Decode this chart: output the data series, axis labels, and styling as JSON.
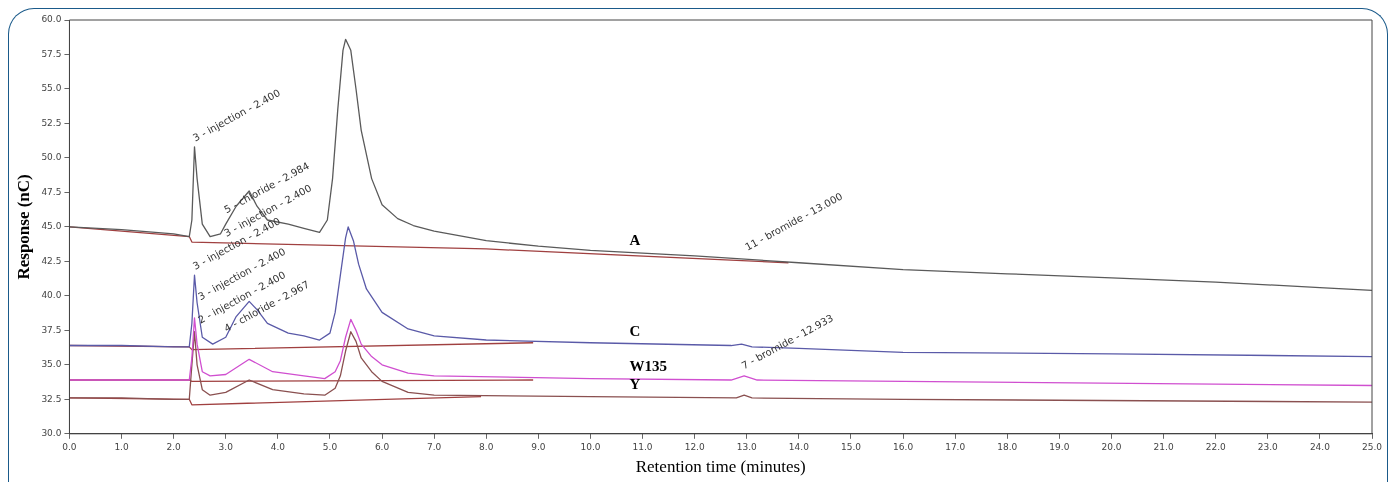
{
  "chart_data": {
    "type": "line",
    "xlabel": "Retention time (minutes)",
    "ylabel": "Response (nC)",
    "xlim": [
      0,
      25
    ],
    "ylim": [
      30,
      60
    ],
    "xticks": [
      {
        "value": 0,
        "label": "0.0"
      },
      {
        "value": 1,
        "label": "1.0"
      },
      {
        "value": 2,
        "label": "2.0"
      },
      {
        "value": 3,
        "label": "3.0"
      },
      {
        "value": 4,
        "label": "4.0"
      },
      {
        "value": 5,
        "label": "5.0"
      },
      {
        "value": 6,
        "label": "6.0"
      },
      {
        "value": 7,
        "label": "7.0"
      },
      {
        "value": 8,
        "label": "8.0"
      },
      {
        "value": 9,
        "label": "9.0"
      },
      {
        "value": 10,
        "label": "10.0"
      },
      {
        "value": 11,
        "label": "11.0"
      },
      {
        "value": 12,
        "label": "12.0"
      },
      {
        "value": 13,
        "label": "13.0"
      },
      {
        "value": 14,
        "label": "14.0"
      },
      {
        "value": 15,
        "label": "15.0"
      },
      {
        "value": 16,
        "label": "16.0"
      },
      {
        "value": 17,
        "label": "17.0"
      },
      {
        "value": 18,
        "label": "18.0"
      },
      {
        "value": 19,
        "label": "19.0"
      },
      {
        "value": 20,
        "label": "20.0"
      },
      {
        "value": 21,
        "label": "21.0"
      },
      {
        "value": 22,
        "label": "22.0"
      },
      {
        "value": 23,
        "label": "23.0"
      },
      {
        "value": 24,
        "label": "24.0"
      },
      {
        "value": 25,
        "label": "25.0"
      }
    ],
    "yticks": [
      {
        "value": 30,
        "label": "30.0"
      },
      {
        "value": 32.5,
        "label": "32.5"
      },
      {
        "value": 35,
        "label": "35.0"
      },
      {
        "value": 37.5,
        "label": "37.5"
      },
      {
        "value": 40,
        "label": "40.0"
      },
      {
        "value": 42.5,
        "label": "42.5"
      },
      {
        "value": 45,
        "label": "45.0"
      },
      {
        "value": 47.5,
        "label": "47.5"
      },
      {
        "value": 50,
        "label": "50.0"
      },
      {
        "value": 52.5,
        "label": "52.5"
      },
      {
        "value": 55,
        "label": "55.0"
      },
      {
        "value": 57.5,
        "label": "57.5"
      },
      {
        "value": 60,
        "label": "60.0"
      }
    ],
    "grid": false,
    "legend": false,
    "marker": "none",
    "line_style": "solid",
    "series": [
      {
        "name": "A",
        "color": "#5a5a5a",
        "x": [
          0,
          1,
          2,
          2.3,
          2.35,
          2.4,
          2.45,
          2.55,
          2.7,
          2.9,
          3.0,
          3.2,
          3.45,
          3.6,
          3.8,
          4.2,
          4.5,
          4.8,
          4.95,
          5.05,
          5.15,
          5.25,
          5.3,
          5.4,
          5.5,
          5.6,
          5.8,
          6.0,
          6.3,
          6.6,
          7.0,
          8.0,
          9.0,
          10.0,
          12.0,
          14.0,
          16.0,
          18.0,
          20.0,
          22.0,
          24.0,
          25.0
        ],
        "values": [
          45.0,
          44.8,
          44.5,
          44.3,
          45.5,
          50.8,
          48.5,
          45.2,
          44.3,
          44.5,
          45.2,
          46.5,
          47.6,
          46.5,
          45.5,
          45.2,
          44.9,
          44.6,
          45.5,
          48.5,
          53.5,
          57.8,
          58.6,
          57.8,
          55.0,
          52.0,
          48.5,
          46.6,
          45.6,
          45.1,
          44.7,
          44.0,
          43.6,
          43.3,
          42.9,
          42.4,
          41.9,
          41.6,
          41.3,
          41.0,
          40.6,
          40.4
        ]
      },
      {
        "name": "C",
        "color": "#5a5aa8",
        "x": [
          0,
          1,
          2,
          2.3,
          2.35,
          2.4,
          2.45,
          2.55,
          2.75,
          3.0,
          3.2,
          3.45,
          3.6,
          3.8,
          4.2,
          4.5,
          4.8,
          5.0,
          5.1,
          5.2,
          5.3,
          5.35,
          5.45,
          5.55,
          5.7,
          6.0,
          6.5,
          7.0,
          8.0,
          10.0,
          12.7,
          12.9,
          13.1,
          14.0,
          16.0,
          20.0,
          25.0
        ],
        "values": [
          36.4,
          36.4,
          36.3,
          36.3,
          38.0,
          41.5,
          39.5,
          37.0,
          36.5,
          37.0,
          38.5,
          39.6,
          39.0,
          38.0,
          37.3,
          37.1,
          36.8,
          37.3,
          38.8,
          41.5,
          44.2,
          45.0,
          44.0,
          42.3,
          40.5,
          38.8,
          37.6,
          37.1,
          36.8,
          36.6,
          36.4,
          36.5,
          36.3,
          36.2,
          35.9,
          35.8,
          35.6
        ]
      },
      {
        "name": "W135",
        "color": "#d04fd0",
        "x": [
          0,
          1,
          2,
          2.3,
          2.35,
          2.4,
          2.45,
          2.55,
          2.7,
          3.0,
          3.45,
          3.9,
          4.5,
          4.9,
          5.1,
          5.2,
          5.3,
          5.4,
          5.5,
          5.6,
          5.8,
          6.0,
          6.5,
          7.0,
          10.0,
          12.7,
          12.95,
          13.2,
          16.0,
          25.0
        ],
        "values": [
          33.9,
          33.9,
          33.9,
          33.9,
          35.5,
          38.4,
          36.5,
          34.5,
          34.2,
          34.3,
          35.4,
          34.5,
          34.2,
          34.0,
          34.5,
          35.3,
          37.0,
          38.3,
          37.5,
          36.5,
          35.6,
          35.0,
          34.4,
          34.2,
          34.0,
          33.9,
          34.2,
          33.9,
          33.8,
          33.5
        ]
      },
      {
        "name": "Y",
        "color": "#8a5050",
        "x": [
          0,
          1,
          2,
          2.3,
          2.35,
          2.4,
          2.45,
          2.55,
          2.7,
          3.0,
          3.45,
          3.9,
          4.5,
          4.9,
          5.1,
          5.2,
          5.3,
          5.4,
          5.5,
          5.6,
          5.8,
          6.0,
          6.5,
          7.0,
          10.0,
          12.8,
          12.95,
          13.1,
          16.0,
          25.0
        ],
        "values": [
          32.6,
          32.6,
          32.5,
          32.5,
          35.0,
          37.4,
          35.0,
          33.2,
          32.8,
          33.0,
          33.9,
          33.2,
          32.9,
          32.8,
          33.3,
          34.2,
          36.0,
          37.4,
          36.7,
          35.5,
          34.5,
          33.8,
          33.0,
          32.8,
          32.7,
          32.6,
          32.8,
          32.6,
          32.5,
          32.3
        ]
      },
      {
        "color": "#a04040",
        "x": [
          0,
          2.3,
          2.35,
          8.0,
          13.8
        ],
        "values": [
          45.0,
          44.3,
          43.9,
          43.4,
          42.4
        ]
      },
      {
        "color": "#a04040",
        "x": [
          0,
          2.3,
          2.35,
          8.9
        ],
        "values": [
          36.4,
          36.3,
          36.1,
          36.6
        ]
      },
      {
        "color": "#a04040",
        "x": [
          0,
          2.3,
          2.35,
          8.9
        ],
        "values": [
          33.9,
          33.9,
          33.8,
          33.9
        ]
      },
      {
        "color": "#a04040",
        "x": [
          0,
          2.3,
          2.35,
          7.9
        ],
        "values": [
          32.6,
          32.5,
          32.1,
          32.7
        ]
      }
    ],
    "annotations": [
      {
        "text": "3 - injection - 2.400",
        "x": 2.4,
        "y": 50.8
      },
      {
        "text": "5 - chloride - 2.984",
        "x": 3.0,
        "y": 45.6
      },
      {
        "text": "3 - injection - 2.400",
        "x": 3.0,
        "y": 43.9
      },
      {
        "text": "3 - injection - 2.400",
        "x": 2.4,
        "y": 41.5
      },
      {
        "text": "3 - injection - 2.400",
        "x": 2.5,
        "y": 39.3
      },
      {
        "text": "2 - injection - 2.400",
        "x": 2.5,
        "y": 37.6
      },
      {
        "text": "4 - chloride - 2.967",
        "x": 3.0,
        "y": 37.0
      },
      {
        "text": "11 - bromide - 13.000",
        "x": 13.0,
        "y": 42.9
      },
      {
        "text": "7 - bromide - 12.933",
        "x": 12.93,
        "y": 34.3
      }
    ]
  }
}
